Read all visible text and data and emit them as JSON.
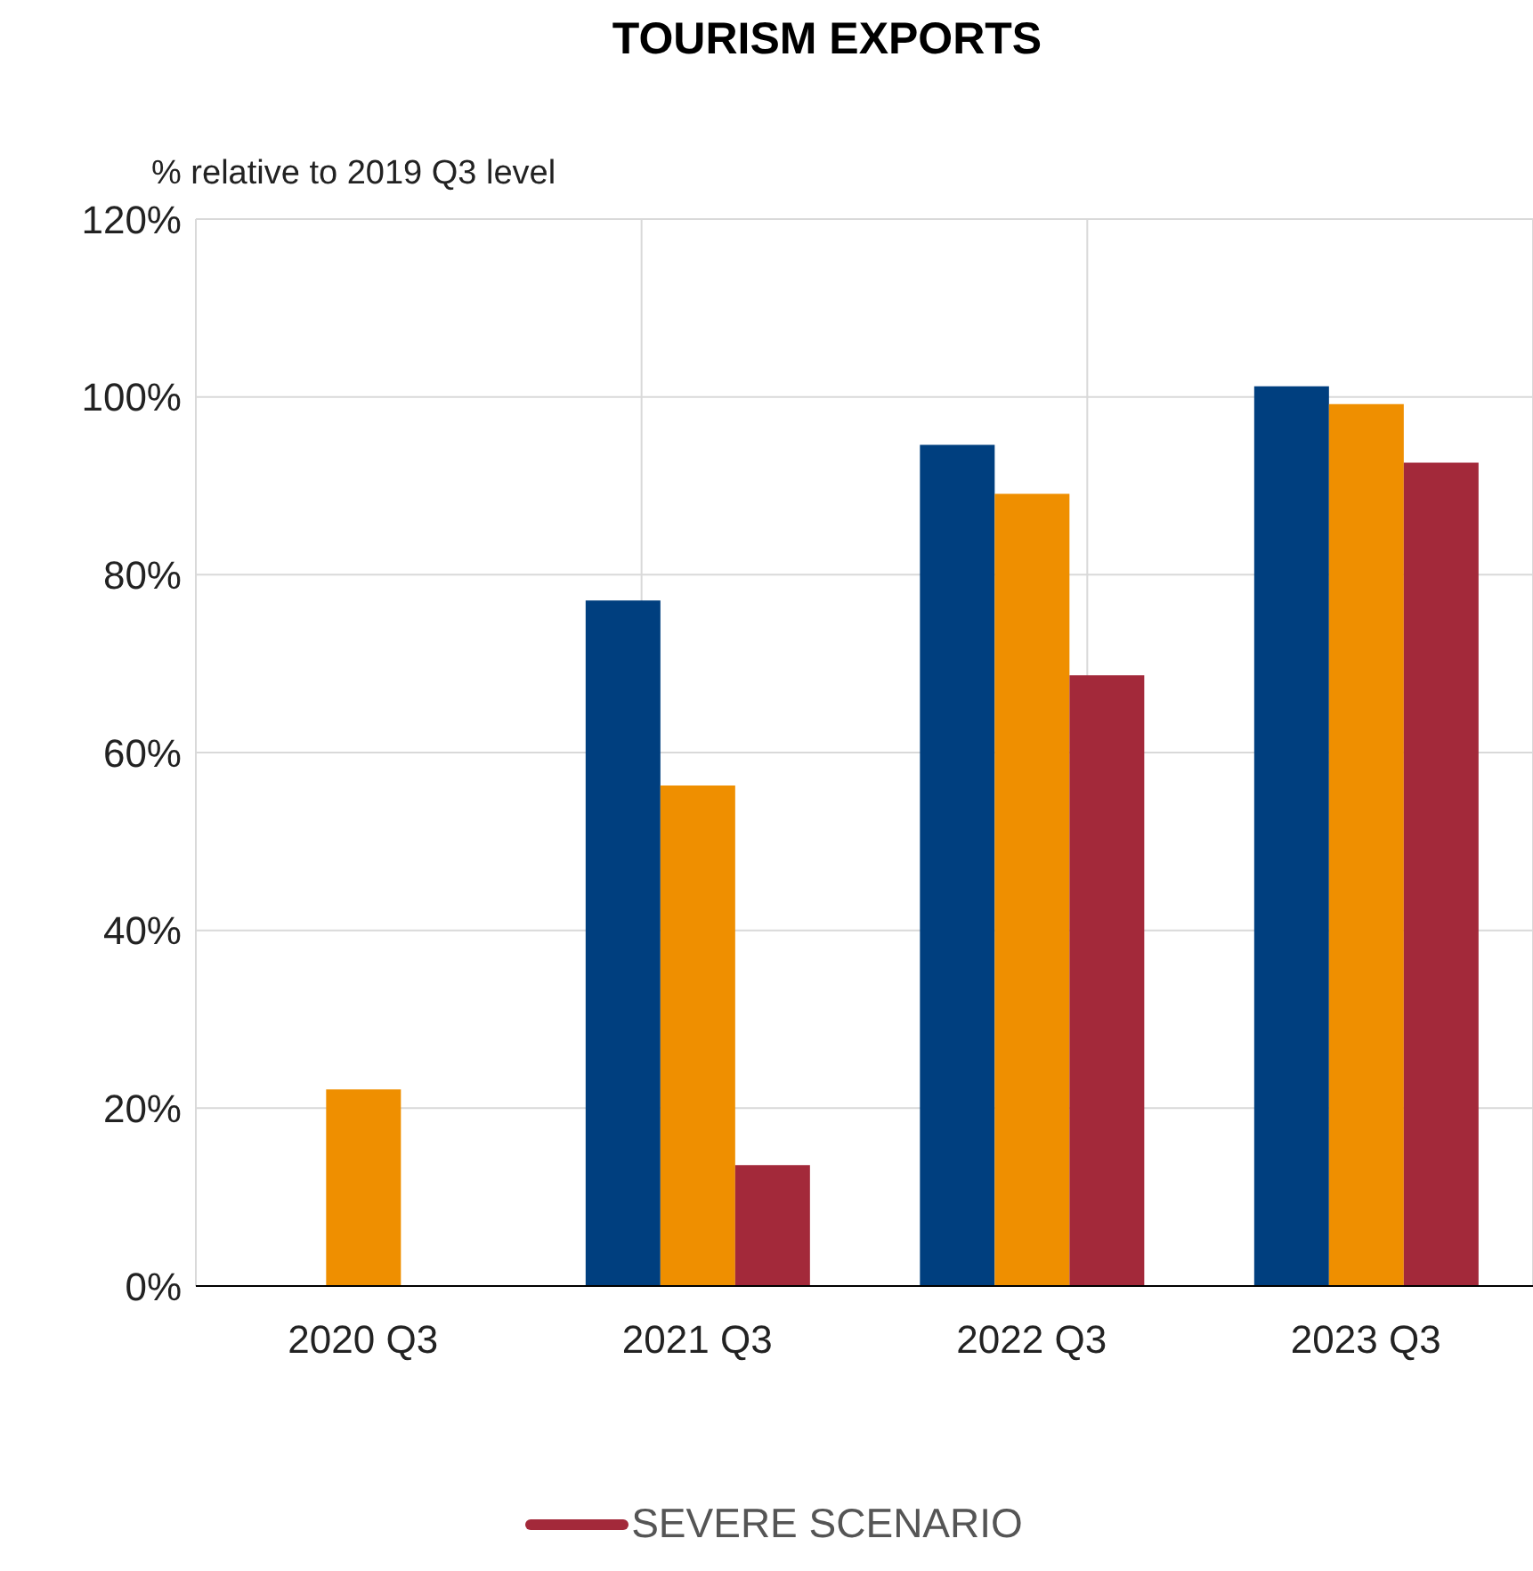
{
  "chart_data": {
    "type": "bar",
    "title": "TOURISM EXPORTS",
    "ylabel": "% relative to 2019 Q3 level",
    "categories": [
      "2020 Q3",
      "2021 Q3",
      "2022 Q3",
      "2023 Q3"
    ],
    "series": [
      {
        "color": "#003f7f",
        "values": [
          null,
          77.1,
          94.6,
          101.2
        ]
      },
      {
        "color": "#ef8f00",
        "values": [
          22.1,
          56.3,
          89.1,
          99.2
        ]
      },
      {
        "name": "SEVERE SCENARIO",
        "color": "#a3293a",
        "values": [
          null,
          13.6,
          68.7,
          92.6
        ]
      }
    ],
    "ylim": [
      0,
      120
    ],
    "yticks": [
      {
        "value": 0,
        "label": "0%"
      },
      {
        "value": 20,
        "label": "20%"
      },
      {
        "value": 40,
        "label": "40%"
      },
      {
        "value": 60,
        "label": "60%"
      },
      {
        "value": 80,
        "label": "80%"
      },
      {
        "value": 100,
        "label": "100%"
      },
      {
        "value": 120,
        "label": "120%"
      }
    ],
    "grid": true,
    "legend": "bottom"
  }
}
